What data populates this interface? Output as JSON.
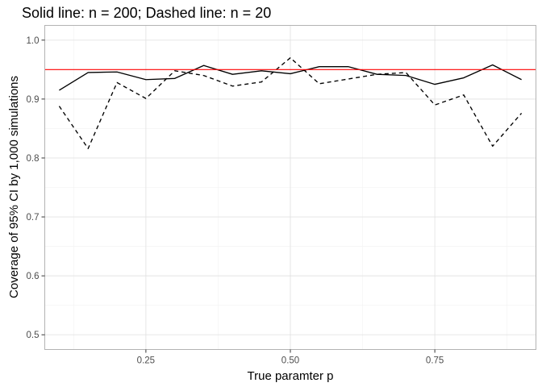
{
  "chart_data": {
    "type": "line",
    "title": "Solid line: n = 200; Dashed line: n = 20",
    "xlabel": "True paramter p",
    "ylabel": "Coverage of 95% CI by 1,000 simulations",
    "xlim": [
      0.075,
      0.925
    ],
    "ylim": [
      0.475,
      1.025
    ],
    "x_ticks": [
      0.25,
      0.5,
      0.75
    ],
    "x_tick_labels": [
      "0.25",
      "0.50",
      "0.75"
    ],
    "y_ticks": [
      0.5,
      0.6,
      0.7,
      0.8,
      0.9,
      1.0
    ],
    "y_tick_labels": [
      "0.5",
      "0.6",
      "0.7",
      "0.8",
      "0.9",
      "1.0"
    ],
    "grid": true,
    "reference_line": {
      "y": 0.95,
      "color": "#ff0000"
    },
    "x": [
      0.1,
      0.15,
      0.2,
      0.25,
      0.3,
      0.35,
      0.4,
      0.45,
      0.5,
      0.55,
      0.6,
      0.65,
      0.7,
      0.75,
      0.8,
      0.85,
      0.9
    ],
    "series": [
      {
        "style": "solid",
        "color": "#000000",
        "values": [
          0.915,
          0.945,
          0.946,
          0.933,
          0.935,
          0.957,
          0.942,
          0.948,
          0.943,
          0.955,
          0.955,
          0.942,
          0.94,
          0.925,
          0.936,
          0.958,
          0.933
        ]
      },
      {
        "style": "dashed",
        "color": "#000000",
        "values": [
          0.888,
          0.816,
          0.928,
          0.901,
          0.948,
          0.94,
          0.922,
          0.929,
          0.97,
          0.926,
          0.934,
          0.942,
          0.945,
          0.89,
          0.907,
          0.82,
          0.876
        ]
      }
    ]
  }
}
